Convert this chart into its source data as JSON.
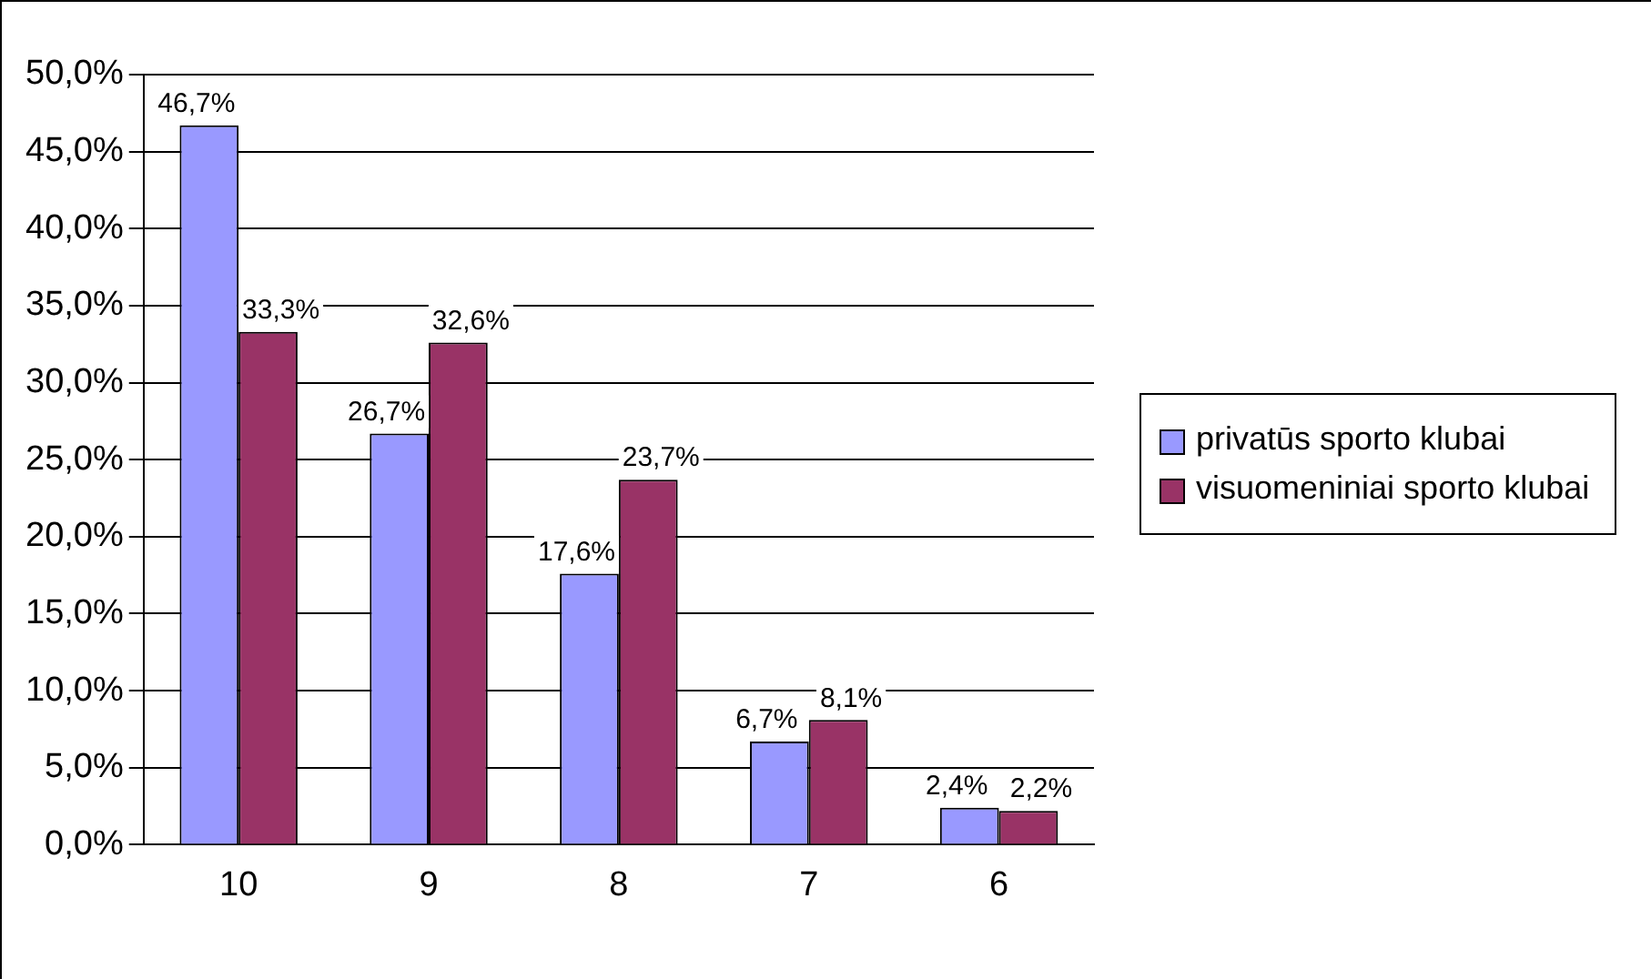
{
  "chart_data": {
    "type": "bar",
    "categories": [
      "10",
      "9",
      "8",
      "7",
      "6"
    ],
    "series": [
      {
        "name": "privatūs sporto klubai",
        "color": "#9999ff",
        "values": [
          46.7,
          26.7,
          17.6,
          6.7,
          2.4
        ],
        "value_labels": [
          "46,7%",
          "26,7%",
          "17,6%",
          "6,7%",
          "2,4%"
        ]
      },
      {
        "name": "visuomeniniai sporto klubai",
        "color": "#993366",
        "values": [
          33.3,
          32.6,
          23.7,
          8.1,
          2.2
        ],
        "value_labels": [
          "33,3%",
          "32,6%",
          "23,7%",
          "8,1%",
          "2,2%"
        ]
      }
    ],
    "ylim": [
      0,
      50
    ],
    "yticks": [
      {
        "value": 0,
        "label": "0,0%"
      },
      {
        "value": 5,
        "label": "5,0%"
      },
      {
        "value": 10,
        "label": "10,0%"
      },
      {
        "value": 15,
        "label": "15,0%"
      },
      {
        "value": 20,
        "label": "20,0%"
      },
      {
        "value": 25,
        "label": "25,0%"
      },
      {
        "value": 30,
        "label": "30,0%"
      },
      {
        "value": 35,
        "label": "35,0%"
      },
      {
        "value": 40,
        "label": "40,0%"
      },
      {
        "value": 45,
        "label": "45,0%"
      },
      {
        "value": 50,
        "label": "50,0%"
      }
    ],
    "grid": "y",
    "legend": "right"
  }
}
